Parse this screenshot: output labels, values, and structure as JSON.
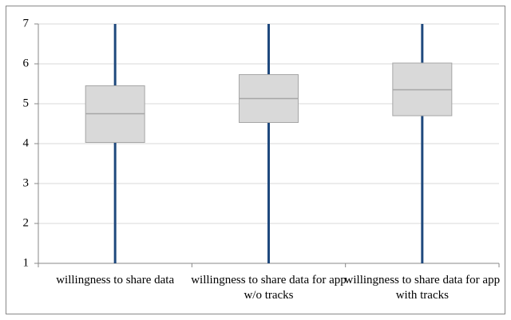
{
  "chart_data": {
    "type": "box",
    "categories": [
      "willingness to share data",
      "willingness to share data for app w/o tracks",
      "willingness to share data for app with tracks"
    ],
    "boxes": [
      {
        "min": 1,
        "q1": 4.03,
        "median": 4.75,
        "q3": 5.45,
        "max": 7
      },
      {
        "min": 1,
        "q1": 4.53,
        "median": 5.13,
        "q3": 5.73,
        "max": 7
      },
      {
        "min": 1,
        "q1": 4.7,
        "median": 5.35,
        "q3": 6.02,
        "max": 7
      }
    ],
    "whisker_color": "#1f497d",
    "box_color": "#d9d9d9",
    "ylim": [
      1,
      7
    ],
    "yticks": [
      1,
      2,
      3,
      4,
      5,
      6,
      7
    ],
    "grid": true
  }
}
